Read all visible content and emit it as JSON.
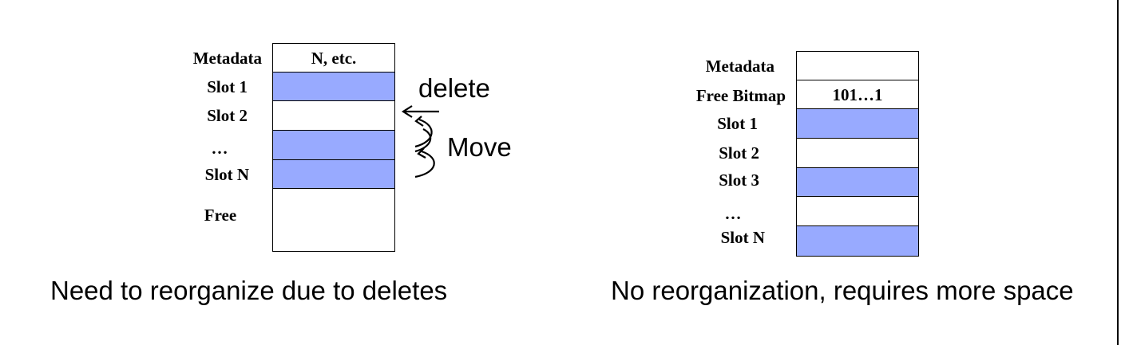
{
  "left": {
    "rows": [
      {
        "label": "Metadata",
        "cell_text": "N, etc.",
        "filled": false
      },
      {
        "label": "Slot 1",
        "cell_text": "",
        "filled": true
      },
      {
        "label": "Slot 2",
        "cell_text": "",
        "filled": false
      },
      {
        "label": "…",
        "cell_text": "",
        "filled": true
      },
      {
        "label": "Slot N",
        "cell_text": "",
        "filled": true
      },
      {
        "label": "Free",
        "cell_text": "",
        "filled": false
      }
    ],
    "delete_label": "delete",
    "move_label": "Move",
    "caption": "Need to reorganize due to deletes"
  },
  "right": {
    "rows": [
      {
        "label": "Metadata",
        "cell_text": "",
        "filled": false
      },
      {
        "label": "Free Bitmap",
        "cell_text": "101…1",
        "filled": false
      },
      {
        "label": "Slot 1",
        "cell_text": "",
        "filled": true
      },
      {
        "label": "Slot 2",
        "cell_text": "",
        "filled": false
      },
      {
        "label": "Slot 3",
        "cell_text": "",
        "filled": true
      },
      {
        "label": "…",
        "cell_text": "",
        "filled": false
      },
      {
        "label": "Slot N",
        "cell_text": "",
        "filled": true
      }
    ],
    "caption": "No reorganization, requires more space"
  },
  "colors": {
    "slot_fill": "#98aaff",
    "empty_fill": "#ffffff",
    "border": "#000000"
  }
}
